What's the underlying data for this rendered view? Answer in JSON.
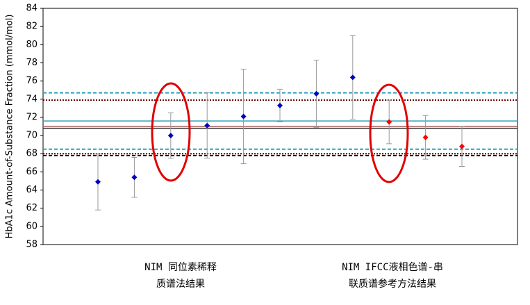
{
  "chart_data": {
    "type": "scatter",
    "y_label": "HbA1c Amount-of-Substance Fraction (mmol/mol)",
    "categories": [
      null,
      null,
      null,
      null,
      null,
      null,
      null,
      null,
      null,
      null,
      null
    ],
    "series": [
      {
        "color": "#0000c0",
        "values": [
          64.9,
          65.4,
          70.0,
          71.1,
          72.1,
          73.3,
          74.6,
          76.4,
          null,
          null,
          null
        ],
        "errors": [
          3.1,
          2.2,
          2.5,
          3.6,
          5.2,
          1.8,
          3.7,
          4.6,
          null,
          null,
          null
        ]
      },
      {
        "color": "#ff0000",
        "values": [
          null,
          null,
          null,
          null,
          null,
          null,
          null,
          null,
          71.5,
          69.8,
          68.8
        ],
        "errors": [
          null,
          null,
          null,
          null,
          null,
          null,
          null,
          null,
          2.4,
          2.4,
          2.2
        ]
      }
    ],
    "reference_lines": [
      {
        "value": 74.7,
        "color": "#2aa0c0",
        "style": "dashed"
      },
      {
        "value": 73.9,
        "color": "#600000",
        "style": "dotted"
      },
      {
        "value": 71.6,
        "color": "#2aa0c0",
        "style": "solid"
      },
      {
        "value": 71.0,
        "color": "#a06060",
        "style": "solid"
      },
      {
        "value": 70.8,
        "color": "#303030",
        "style": "solid"
      },
      {
        "value": 68.5,
        "color": "#2aa0c0",
        "style": "dashed"
      },
      {
        "value": 68.0,
        "color": "#600000",
        "style": "dotted"
      },
      {
        "value": 67.8,
        "color": "#000000",
        "style": "dashed"
      }
    ],
    "group_labels": [
      {
        "lines": [
          "NIM 同位素稀释",
          "质谱法结果"
        ]
      },
      {
        "lines": [
          "NIM IFCC液相色谱-串",
          "联质谱参考方法结果"
        ]
      }
    ],
    "ylim": [
      58,
      84
    ],
    "yticks": [
      58,
      60,
      62,
      64,
      66,
      68,
      70,
      72,
      74,
      76,
      78,
      80,
      82,
      84
    ]
  }
}
